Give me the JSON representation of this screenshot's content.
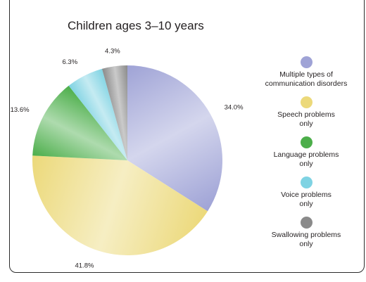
{
  "chart_data": {
    "type": "pie",
    "title": "Children ages 3–10 years",
    "start": "top, clockwise",
    "slices": [
      {
        "label": "Multiple types of\ncommunication disorders",
        "value": 34.0,
        "display": "34.0%",
        "color": "#9fa3d6"
      },
      {
        "label": "Speech problems\nonly",
        "value": 41.8,
        "display": "41.8%",
        "color": "#ecd97a"
      },
      {
        "label": "Language problems\nonly",
        "value": 13.6,
        "display": "13.6%",
        "color": "#4cae4a"
      },
      {
        "label": "Voice problems\nonly",
        "value": 6.3,
        "display": "6.3%",
        "color": "#7fd3e3"
      },
      {
        "label": "Swallowing problems\nonly",
        "value": 4.3,
        "display": "4.3%",
        "color": "#8a8a8a"
      }
    ],
    "legend_position": "right"
  }
}
